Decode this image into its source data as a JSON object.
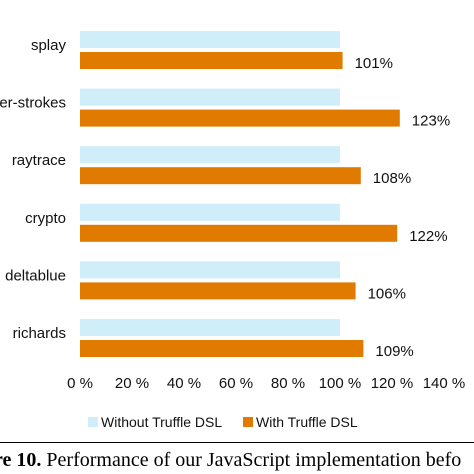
{
  "chart_data": {
    "type": "bar",
    "orientation": "horizontal",
    "categories": [
      "splay",
      "earley-boyer-strokes",
      "raytrace",
      "crypto",
      "deltablue",
      "richards"
    ],
    "series": [
      {
        "name": "Without Truffle DSL",
        "color": "#cfeef9",
        "values": [
          100,
          100,
          100,
          100,
          100,
          100
        ]
      },
      {
        "name": "With Truffle DSL",
        "color": "#e07b00",
        "values": [
          101,
          123,
          108,
          122,
          106,
          109
        ]
      }
    ],
    "data_labels": [
      "101%",
      "123%",
      "108%",
      "122%",
      "106%",
      "109%"
    ],
    "xlim": [
      0,
      140
    ],
    "x_ticks": [
      0,
      20,
      40,
      60,
      80,
      100,
      120,
      140
    ],
    "x_tick_labels": [
      "0 %",
      "20 %",
      "40 %",
      "60 %",
      "80 %",
      "100 %",
      "120 %",
      "140 %"
    ],
    "legend": "bottom",
    "grid": false
  },
  "caption": {
    "label": "re 10.",
    "text": "Performance of our JavaScript implementation befo"
  }
}
